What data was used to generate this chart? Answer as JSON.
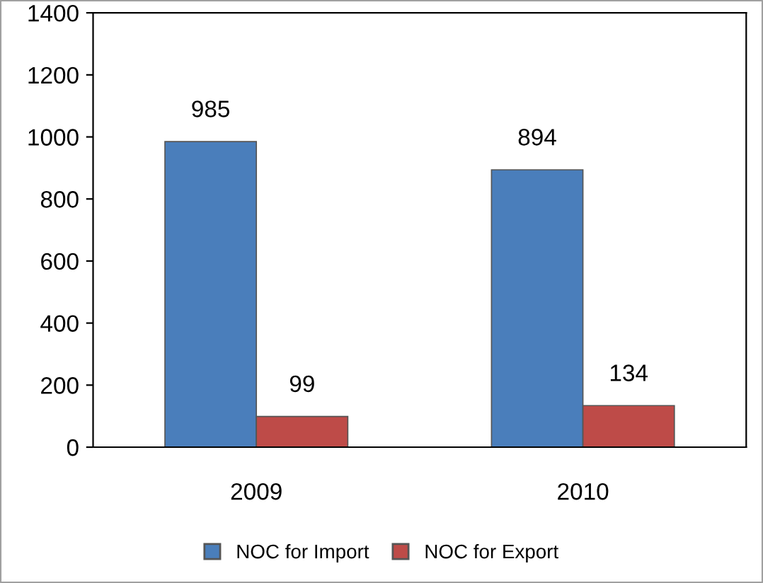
{
  "chart_data": {
    "type": "bar",
    "categories": [
      "2009",
      "2010"
    ],
    "series": [
      {
        "name": "NOC for Import",
        "color": "#4a7ebb",
        "values": [
          985,
          894
        ]
      },
      {
        "name": "NOC for Export",
        "color": "#be4b48",
        "values": [
          99,
          134
        ]
      }
    ],
    "ylim": [
      0,
      1400
    ],
    "yticks": [
      0,
      200,
      400,
      600,
      800,
      1000,
      1200,
      1400
    ],
    "data_labels": true,
    "grid": false,
    "legend": "bottom"
  }
}
